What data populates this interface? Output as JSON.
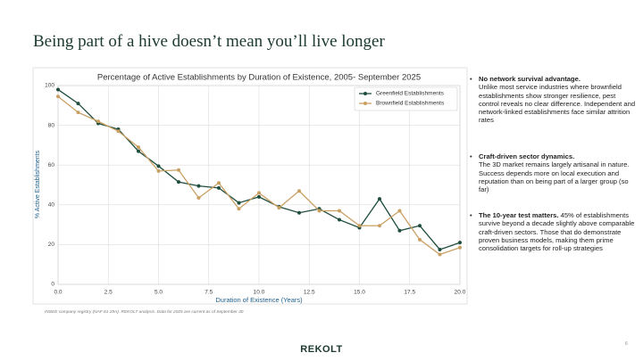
{
  "slide_title": "Being part of a hive doesn’t mean you’ll live longer",
  "chart_data": {
    "type": "line",
    "title": "Percentage of Active Establishments by Duration of Existence, 2005- September 2025",
    "x_label": "Duration of Existence (Years)",
    "y_label": "% Active Establishments",
    "x": [
      0,
      1,
      2,
      3,
      4,
      5,
      6,
      7,
      8,
      9,
      10,
      11,
      12,
      13,
      14,
      15,
      16,
      17,
      18,
      19,
      20
    ],
    "series": [
      {
        "name": "Greenfield Establishments",
        "color": "#1e4d3b",
        "values": [
          98,
          91,
          81,
          78,
          67,
          59.5,
          51.5,
          49.5,
          48.5,
          41,
          44,
          39,
          36,
          38,
          32.5,
          28.5,
          43,
          27,
          29.5,
          17.5,
          21
        ]
      },
      {
        "name": "Brownfield Establishments",
        "color": "#c9a063",
        "values": [
          94.5,
          86.5,
          82,
          77,
          69,
          57,
          57.5,
          43.5,
          51,
          38,
          46,
          38.5,
          47,
          37,
          37,
          29.5,
          29.5,
          37,
          22.5,
          15,
          18.5
        ]
      }
    ],
    "xlim": [
      0,
      20
    ],
    "xticks": [
      {
        "value": 0,
        "label": "0.0"
      },
      {
        "value": 2.5,
        "label": "2.5"
      },
      {
        "value": 5,
        "label": "5.0"
      },
      {
        "value": 7.5,
        "label": "7.5"
      },
      {
        "value": 10,
        "label": "10.0"
      },
      {
        "value": 12.5,
        "label": "12.5"
      },
      {
        "value": 15,
        "label": "15.0"
      },
      {
        "value": 17.5,
        "label": "17.5"
      },
      {
        "value": 20,
        "label": "20.0"
      }
    ],
    "ylim": [
      0,
      100
    ],
    "yticks": [
      0,
      20,
      40,
      60,
      80,
      100
    ],
    "grid": true,
    "legend": "upper right"
  },
  "source_note": "INSEE company registry (NAF 81 29A). REKOLT analysis. Data for 2025 are current as of September 30",
  "bullets": [
    {
      "heading": "No network survival advantage.",
      "text": "Unlike most service industries where brownfield establishments show stronger resilience, pest control reveals no clear difference. Independent and network-linked establishments face similar attrition rates"
    },
    {
      "heading": "Craft-driven sector dynamics.",
      "text": "The 3D market remains largely artisanal in nature. Success depends more on local execution and reputation than on being part of a larger group (so far)"
    },
    {
      "heading": "The 10-year test matters.",
      "text": "45% of establishments survive beyond a decade slightly above comparable craft-driven sectors. Those that do demonstrate proven business models, making them prime consolidation targets for roll-up strategies"
    }
  ],
  "logo": "REKOLT",
  "page_number": "6"
}
